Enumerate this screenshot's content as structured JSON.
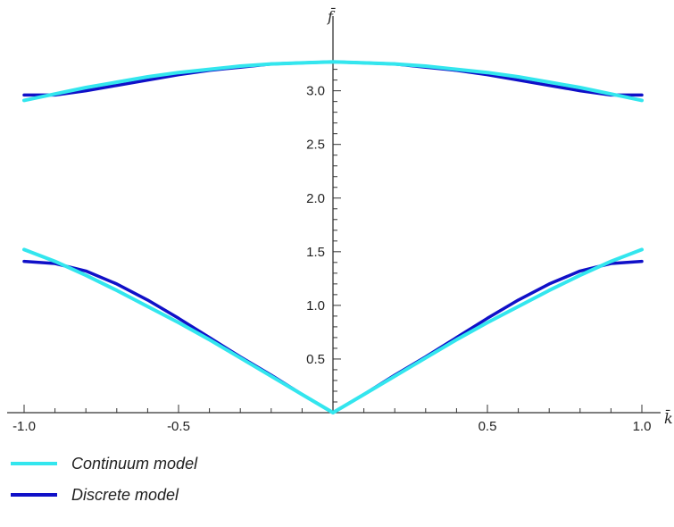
{
  "chart_data": {
    "type": "line",
    "title": "",
    "xlabel": "k̄",
    "ylabel": "f̄",
    "xlim": [
      -1.0,
      1.0
    ],
    "ylim": [
      0.0,
      3.28
    ],
    "x_ticks": [
      "-1.0",
      "-0.5",
      "0.5",
      "1.0"
    ],
    "x_tick_values": [
      -1.0,
      -0.5,
      0.5,
      1.0
    ],
    "y_ticks": [
      "0.5",
      "1.0",
      "1.5",
      "2.0",
      "2.5",
      "3.0"
    ],
    "y_tick_values": [
      0.5,
      1.0,
      1.5,
      2.0,
      2.5,
      3.0
    ],
    "grid": false,
    "legend_position": "bottom-left",
    "series": [
      {
        "name": "Continuum model",
        "color": "#33e6ee",
        "branches": [
          {
            "x": [
              -1.0,
              -0.9,
              -0.8,
              -0.7,
              -0.6,
              -0.5,
              -0.4,
              -0.3,
              -0.2,
              -0.1,
              0.0,
              0.1,
              0.2,
              0.3,
              0.4,
              0.5,
              0.6,
              0.7,
              0.8,
              0.9,
              1.0
            ],
            "y": [
              2.91,
              2.97,
              3.03,
              3.08,
              3.13,
              3.17,
              3.2,
              3.23,
              3.25,
              3.26,
              3.27,
              3.26,
              3.25,
              3.23,
              3.2,
              3.17,
              3.13,
              3.08,
              3.03,
              2.97,
              2.91
            ]
          },
          {
            "x": [
              -1.0,
              -0.9,
              -0.8,
              -0.7,
              -0.6,
              -0.5,
              -0.4,
              -0.3,
              -0.2,
              -0.1,
              0.0,
              0.1,
              0.2,
              0.3,
              0.4,
              0.5,
              0.6,
              0.7,
              0.8,
              0.9,
              1.0
            ],
            "y": [
              1.52,
              1.41,
              1.28,
              1.14,
              0.99,
              0.84,
              0.68,
              0.51,
              0.34,
              0.17,
              0.0,
              0.17,
              0.34,
              0.51,
              0.68,
              0.84,
              0.99,
              1.14,
              1.28,
              1.41,
              1.52
            ]
          }
        ]
      },
      {
        "name": "Discrete model",
        "color": "#1010c8",
        "branches": [
          {
            "x": [
              -1.0,
              -0.9,
              -0.8,
              -0.7,
              -0.6,
              -0.5,
              -0.4,
              -0.3,
              -0.2,
              -0.1,
              0.0,
              0.1,
              0.2,
              0.3,
              0.4,
              0.5,
              0.6,
              0.7,
              0.8,
              0.9,
              1.0
            ],
            "y": [
              2.96,
              2.96,
              3.0,
              3.05,
              3.1,
              3.15,
              3.19,
              3.22,
              3.25,
              3.26,
              3.27,
              3.26,
              3.25,
              3.22,
              3.19,
              3.15,
              3.1,
              3.05,
              3.0,
              2.96,
              2.96
            ]
          },
          {
            "x": [
              -1.0,
              -0.9,
              -0.8,
              -0.7,
              -0.6,
              -0.5,
              -0.4,
              -0.3,
              -0.2,
              -0.1,
              0.0,
              0.1,
              0.2,
              0.3,
              0.4,
              0.5,
              0.6,
              0.7,
              0.8,
              0.9,
              1.0
            ],
            "y": [
              1.41,
              1.39,
              1.32,
              1.2,
              1.05,
              0.88,
              0.7,
              0.52,
              0.35,
              0.17,
              0.0,
              0.17,
              0.35,
              0.52,
              0.7,
              0.88,
              1.05,
              1.2,
              1.32,
              1.39,
              1.41
            ]
          }
        ]
      }
    ]
  }
}
